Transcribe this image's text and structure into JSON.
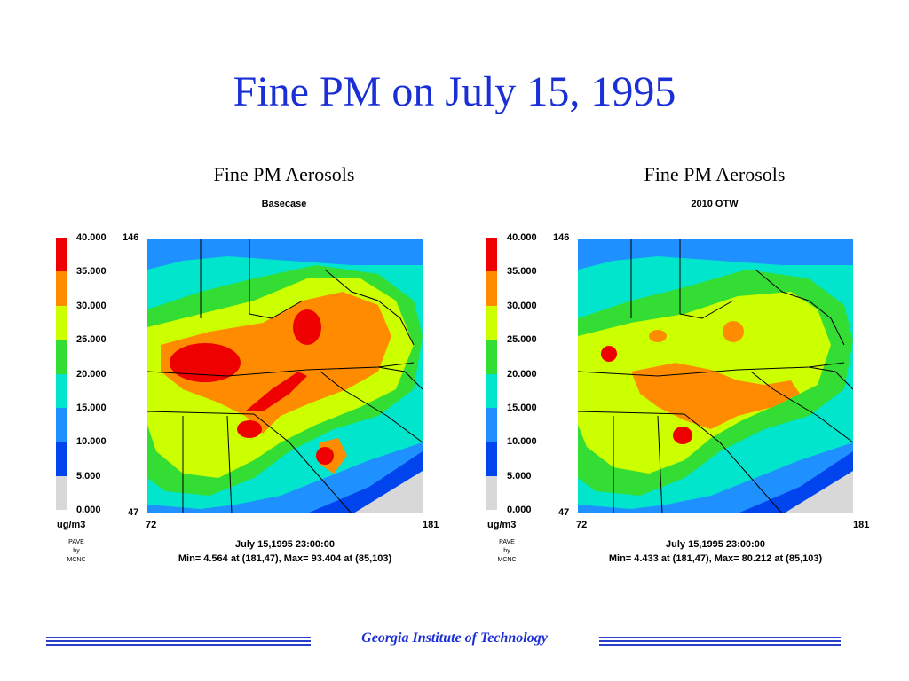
{
  "slide": {
    "title": "Fine PM on July 15, 1995",
    "footer": "Georgia Institute of Technology",
    "accent_color": "#1a2fd6"
  },
  "legend": {
    "unit": "ug/m3",
    "credit": [
      "PAVE",
      "by",
      "MCNC"
    ],
    "ticks": [
      "40.000",
      "35.000",
      "30.000",
      "25.000",
      "20.000",
      "15.000",
      "10.000",
      "5.000",
      "0.000"
    ],
    "colors": [
      "#ee0000",
      "#ff8c00",
      "#ccff00",
      "#33dd33",
      "#00e5cc",
      "#1e90ff",
      "#0044ee",
      "#d8d8d8"
    ]
  },
  "panels": [
    {
      "title": "Fine PM Aerosols",
      "subtitle": "Basecase",
      "y_top": "146",
      "y_bottom": "47",
      "x_left": "72",
      "x_right": "181",
      "timestamp": "July 15,1995 23:00:00",
      "minmax": "Min=   4.564 at (181,47),  Max=  93.404 at (85,103)",
      "min_value": 4.564,
      "max_value": 93.404
    },
    {
      "title": "Fine PM Aerosols",
      "subtitle": "2010 OTW",
      "y_top": "146",
      "y_bottom": "47",
      "x_left": "72",
      "x_right": "181",
      "timestamp": "July 15,1995 23:00:00",
      "minmax": "Min=   4.433 at (181,47),  Max=  80.212 at (85,103)",
      "min_value": 4.433,
      "max_value": 80.212
    }
  ]
}
